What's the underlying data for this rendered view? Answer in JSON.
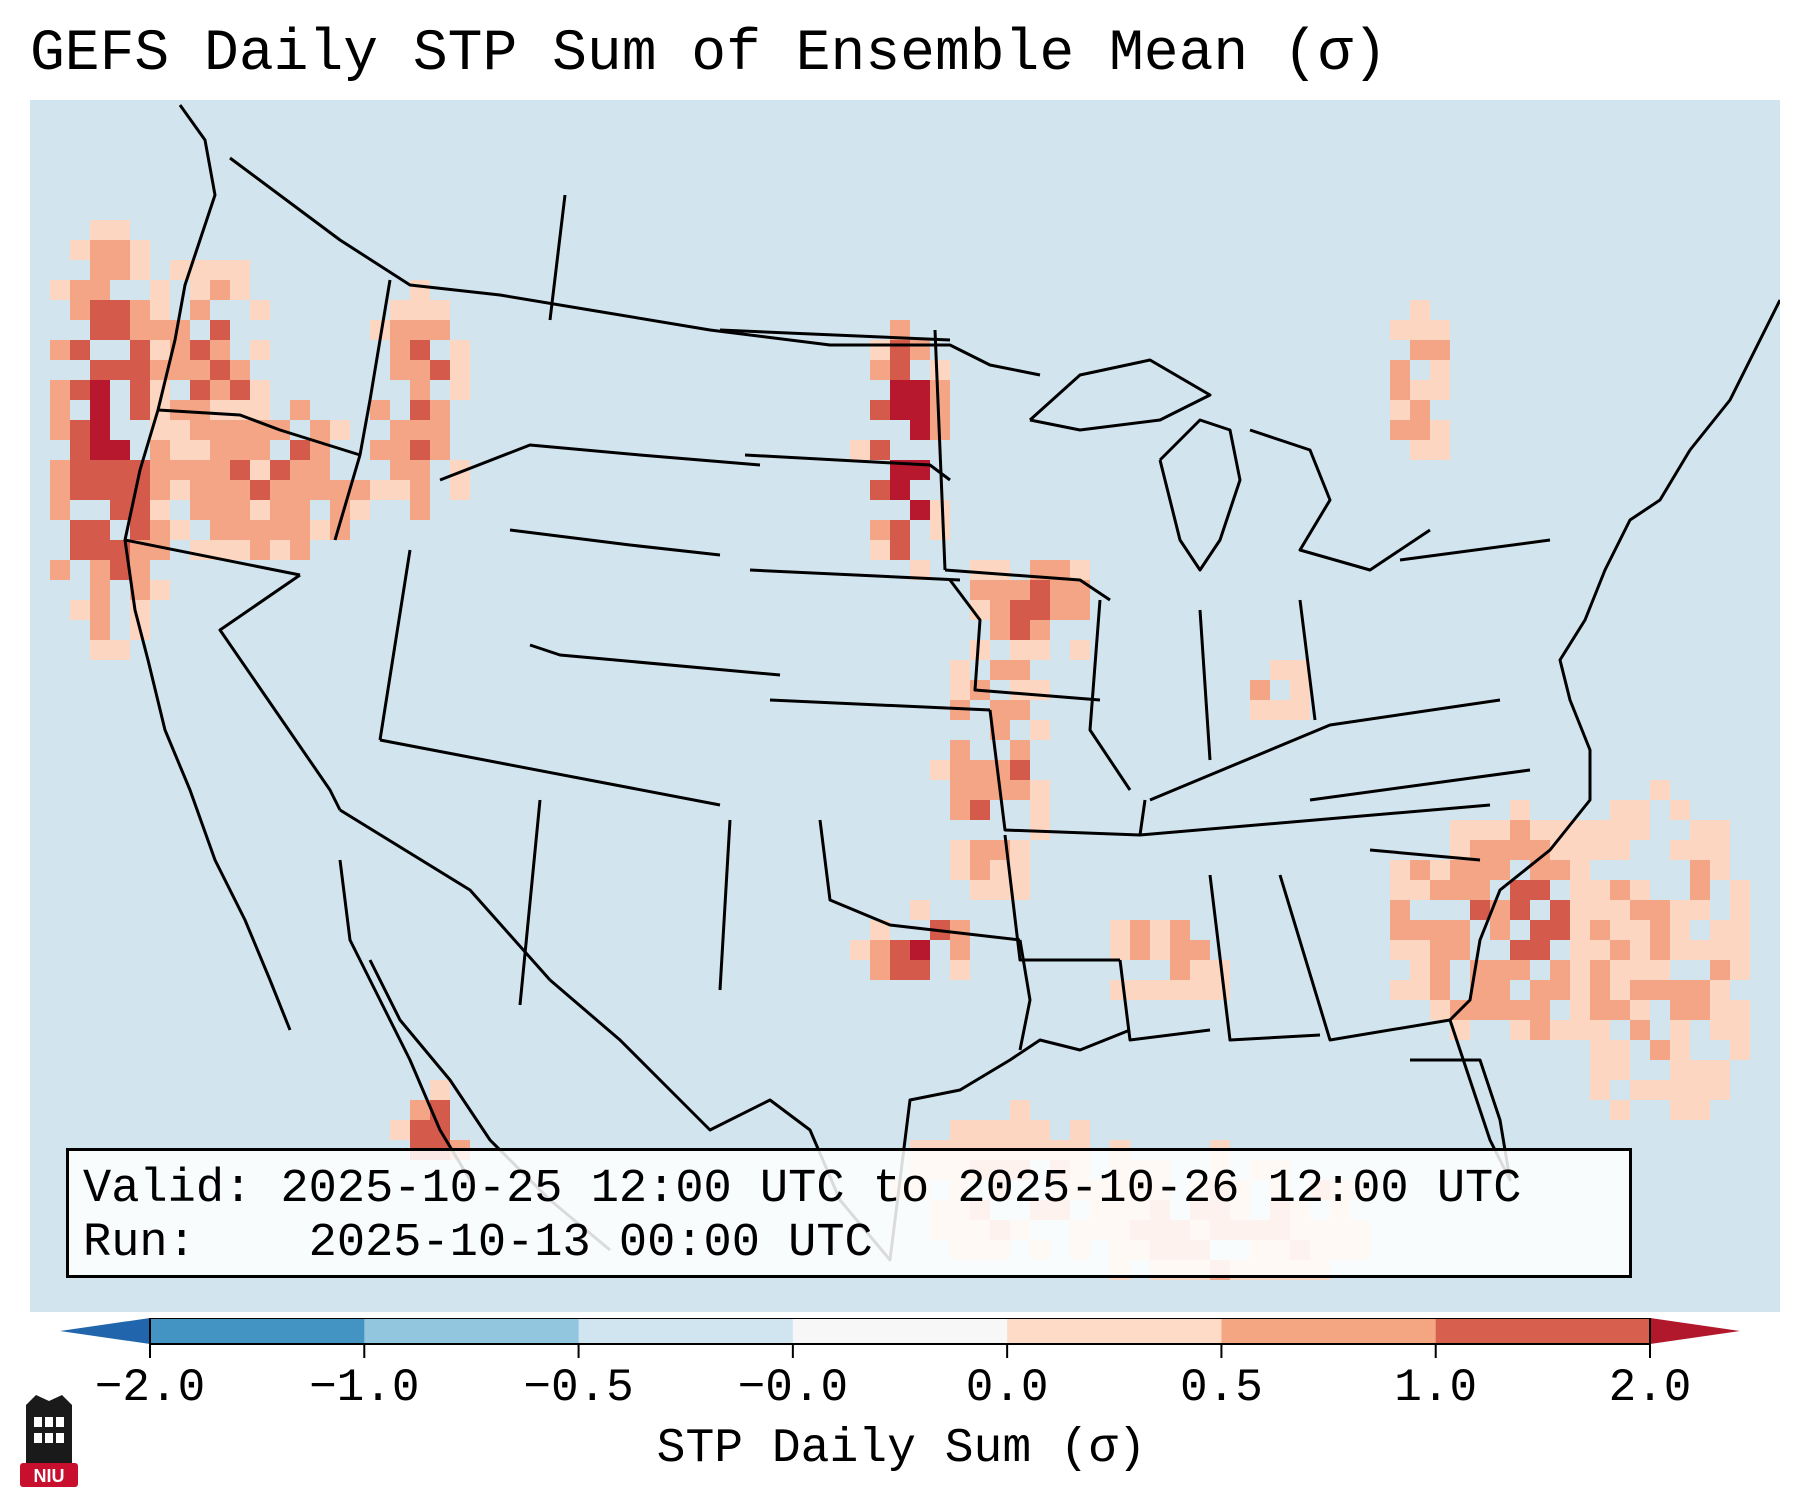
{
  "title": "GEFS Daily STP Sum of Ensemble Mean (σ)",
  "map": {
    "region": "CONUS",
    "palette": {
      "ocean_neutral": "#d2e5ef",
      "light_red": "#fcd6c0",
      "med_red": "#f3a585",
      "red": "#d45a4c",
      "dark_red": "#b7182d",
      "light_blue": "#92c5de",
      "blue": "#4393c3",
      "border": "#000000"
    }
  },
  "info": {
    "valid_label": "Valid:",
    "valid_value": "2025-10-25 12:00 UTC to 2025-10-26 12:00 UTC",
    "run_label": "Run:",
    "run_value": "2025-10-13 00:00 UTC"
  },
  "colorbar": {
    "title": "STP Daily Sum (σ)",
    "ticks": [
      "−2.0",
      "−1.0",
      "−0.5",
      "−0.0",
      "0.0",
      "0.5",
      "1.0",
      "2.0"
    ],
    "segment_colors": [
      "#4393c3",
      "#92c5de",
      "#d1e5f0",
      "#f7f7f7",
      "#fddbc7",
      "#f4a582",
      "#d6604d"
    ],
    "under_color": "#2166ac",
    "over_color": "#b2182b"
  },
  "logo": {
    "text": "NIU"
  }
}
